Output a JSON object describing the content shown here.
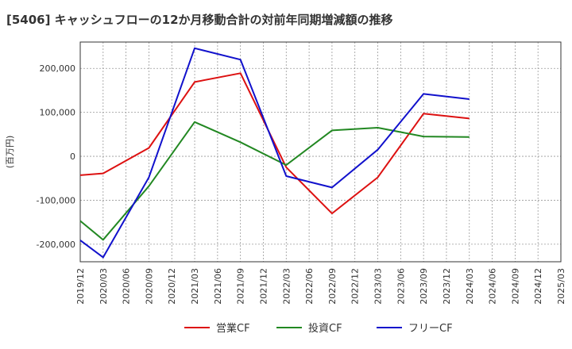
{
  "chart_data": {
    "type": "line",
    "title": "[5406]  キャッシュフローの12か月移動合計の対前年同期増減額の推移",
    "ylabel": "(百万円)",
    "xlabel": "",
    "ylim": [
      -240000,
      260000
    ],
    "yticks": [
      -200000,
      -100000,
      0,
      100000,
      200000
    ],
    "ytick_labels": [
      "-200,000",
      "-100,000",
      "0",
      "100,000",
      "200,000"
    ],
    "xlim": [
      "2019-12",
      "2025-03"
    ],
    "xtick_labels": [
      "2019/12",
      "2020/03",
      "2020/06",
      "2020/09",
      "2020/12",
      "2021/03",
      "2021/06",
      "2021/09",
      "2021/12",
      "2022/03",
      "2022/06",
      "2022/09",
      "2022/12",
      "2023/03",
      "2023/06",
      "2023/09",
      "2023/12",
      "2024/03",
      "2024/06",
      "2024/09",
      "2024/12",
      "2025/03"
    ],
    "grid": true,
    "legend_position": "bottom",
    "series": [
      {
        "name": "営業CF",
        "color": "#dd1111",
        "x": [
          "2019-12",
          "2020-03",
          "2020-09",
          "2021-03",
          "2021-09",
          "2022-03",
          "2022-09",
          "2023-03",
          "2023-09",
          "2024-03"
        ],
        "values": [
          -43000,
          -39000,
          19000,
          169000,
          189000,
          -25000,
          -130000,
          -48000,
          97000,
          86000
        ]
      },
      {
        "name": "投資CF",
        "color": "#228822",
        "x": [
          "2019-12",
          "2020-03",
          "2020-09",
          "2021-03",
          "2021-09",
          "2022-03",
          "2022-09",
          "2023-03",
          "2023-09",
          "2024-03"
        ],
        "values": [
          -147000,
          -190000,
          -68000,
          78000,
          32000,
          -20000,
          59000,
          65000,
          45000,
          44000
        ]
      },
      {
        "name": "フリーCF",
        "color": "#1111cc",
        "x": [
          "2019-12",
          "2020-03",
          "2020-09",
          "2021-03",
          "2021-09",
          "2022-03",
          "2022-09",
          "2023-03",
          "2023-09",
          "2024-03"
        ],
        "values": [
          -191000,
          -230000,
          -48000,
          246000,
          220000,
          -45000,
          -71000,
          15000,
          142000,
          130000
        ]
      }
    ]
  }
}
